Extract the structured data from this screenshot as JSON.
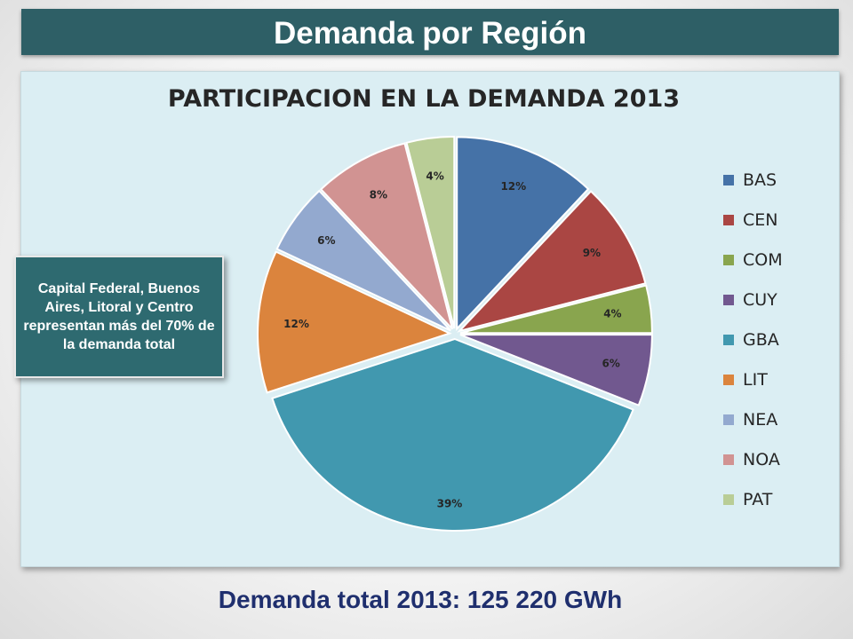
{
  "slide": {
    "title": "Demanda por Región",
    "callout": "Capital Federal, Buenos Aires, Litoral y Centro representan más del 70% de la demanda total",
    "footer": "Demanda total 2013: 125 220 GWh"
  },
  "chart_data": {
    "type": "pie",
    "title": "PARTICIPACION EN LA DEMANDA 2013",
    "categories": [
      "BAS",
      "CEN",
      "COM",
      "CUY",
      "GBA",
      "LIT",
      "NEA",
      "NOA",
      "PAT"
    ],
    "values": [
      12,
      9,
      4,
      6,
      39,
      12,
      6,
      8,
      4
    ],
    "labels": [
      "12%",
      "9%",
      "4%",
      "6%",
      "39%",
      "12%",
      "6%",
      "8%",
      "4%"
    ],
    "colors": [
      "#4572a7",
      "#aa4643",
      "#89a54e",
      "#71588f",
      "#4198af",
      "#db843d",
      "#93a9cf",
      "#d19392",
      "#b9cd96"
    ],
    "legend_position": "right",
    "start_angle": "12 o'clock",
    "direction": "clockwise",
    "exploded": true
  }
}
